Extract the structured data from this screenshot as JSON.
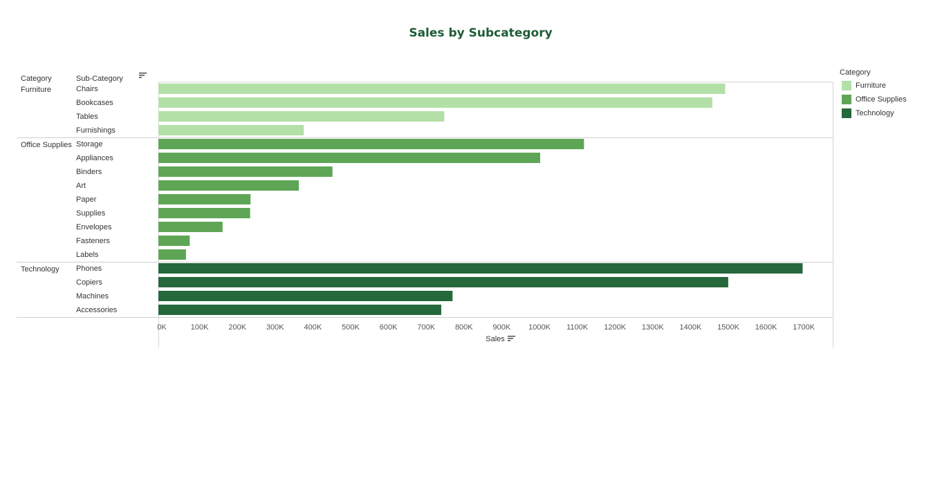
{
  "chart_data": {
    "type": "bar",
    "orientation": "horizontal",
    "title": "Sales by Subcategory",
    "column_headers": {
      "category": "Category",
      "subcategory": "Sub-Category"
    },
    "xlabel": "Sales",
    "xlim": [
      0,
      1800000
    ],
    "x_ticks": [
      0,
      100000,
      200000,
      300000,
      400000,
      500000,
      600000,
      700000,
      800000,
      900000,
      1000000,
      1100000,
      1200000,
      1300000,
      1400000,
      1500000,
      1600000,
      1700000
    ],
    "x_tick_labels": [
      "0K",
      "100K",
      "200K",
      "300K",
      "400K",
      "500K",
      "600K",
      "700K",
      "800K",
      "900K",
      "1000K",
      "1100K",
      "1200K",
      "1300K",
      "1400K",
      "1500K",
      "1600K",
      "1700K"
    ],
    "groups": [
      {
        "name": "Furniture",
        "color": "#b3e0a6",
        "items": [
          {
            "name": "Chairs",
            "value": 1501000
          },
          {
            "name": "Bookcases",
            "value": 1467000
          },
          {
            "name": "Tables",
            "value": 757000
          },
          {
            "name": "Furnishings",
            "value": 385000
          }
        ]
      },
      {
        "name": "Office Supplies",
        "color": "#5ea655",
        "items": [
          {
            "name": "Storage",
            "value": 1127000
          },
          {
            "name": "Appliances",
            "value": 1011000
          },
          {
            "name": "Binders",
            "value": 461000
          },
          {
            "name": "Art",
            "value": 372000
          },
          {
            "name": "Paper",
            "value": 244000
          },
          {
            "name": "Supplies",
            "value": 243000
          },
          {
            "name": "Envelopes",
            "value": 170000
          },
          {
            "name": "Fasteners",
            "value": 83000
          },
          {
            "name": "Labels",
            "value": 73000
          }
        ]
      },
      {
        "name": "Technology",
        "color": "#24683b",
        "items": [
          {
            "name": "Phones",
            "value": 1706000
          },
          {
            "name": "Copiers",
            "value": 1509000
          },
          {
            "name": "Machines",
            "value": 779000
          },
          {
            "name": "Accessories",
            "value": 749000
          }
        ]
      }
    ],
    "legend": {
      "title": "Category",
      "position": "right",
      "items": [
        {
          "label": "Furniture",
          "color": "#b3e0a6"
        },
        {
          "label": "Office Supplies",
          "color": "#5ea655"
        },
        {
          "label": "Technology",
          "color": "#24683b"
        }
      ]
    },
    "grid": false
  },
  "icons": {
    "sort": "sort-descending-icon"
  }
}
